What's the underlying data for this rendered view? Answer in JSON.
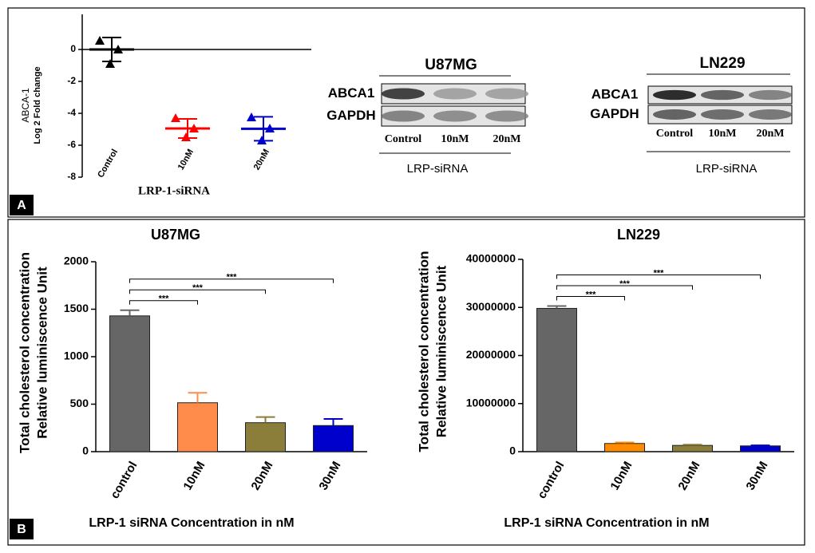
{
  "panels": [
    "A",
    "B"
  ],
  "blots": [
    {
      "title": "U87MG",
      "rows": [
        "ABCA1",
        "GAPDH"
      ],
      "lanes": [
        "Control",
        "10nM",
        "20nM"
      ],
      "group": "LRP-siRNA"
    },
    {
      "title": "LN229",
      "rows": [
        "ABCA1",
        "GAPDH"
      ],
      "lanes": [
        "Control",
        "10nM",
        "20nM"
      ],
      "group": "LRP-siRNA"
    }
  ],
  "chart_data": [
    {
      "type": "dot",
      "ylabel": [
        "ABCA-1",
        "Log 2 Fold change"
      ],
      "xlabel": "LRP-1-siRNA",
      "categories": [
        "Control",
        "10nM",
        "20nM"
      ],
      "points": [
        [
          0.55,
          0,
          -0.9
        ],
        [
          -4.3,
          -4.95,
          -5.5
        ],
        [
          -4.25,
          -4.95,
          -5.7
        ]
      ],
      "means": [
        0,
        -4.95,
        -4.97
      ],
      "errors": [
        0.75,
        0.6,
        0.75
      ],
      "colors": [
        "#000000",
        "#ff0000",
        "#0000cc"
      ],
      "ylim": [
        -8,
        2
      ],
      "yticks": [
        0,
        -2,
        -4,
        -6,
        -8
      ]
    },
    {
      "type": "bar",
      "title": "U87MG",
      "ylabel": [
        "Total cholesterol concentration",
        "Relative luminiscence Unit"
      ],
      "xlabel": "LRP-1 siRNA Concentration in nM",
      "categories": [
        "control",
        "10nM",
        "20nM",
        "30nM"
      ],
      "values": [
        1430,
        515,
        305,
        275
      ],
      "errors": [
        60,
        105,
        60,
        70
      ],
      "colors": [
        "#666666",
        "#ff8c4a",
        "#8b7d3a",
        "#0000cc"
      ],
      "significance": [
        "***",
        "***",
        "***"
      ],
      "ylim": [
        0,
        2000
      ],
      "yticks": [
        0,
        500,
        1000,
        1500,
        2000
      ]
    },
    {
      "type": "bar",
      "title": "LN229",
      "ylabel": [
        "Total cholesterol concentration",
        "Relative luminiscence Unit"
      ],
      "xlabel": "LRP-1 siRNA Concentration in nM",
      "categories": [
        "control",
        "10nM",
        "20nM",
        "30nM"
      ],
      "values": [
        29800000,
        1700000,
        1300000,
        1200000
      ],
      "errors": [
        500000,
        200000,
        150000,
        100000
      ],
      "colors": [
        "#666666",
        "#ff8c00",
        "#8b7d3a",
        "#0000cc"
      ],
      "significance": [
        "***",
        "***",
        "***"
      ],
      "ylim": [
        0,
        40000000
      ],
      "yticks": [
        0,
        10000000,
        20000000,
        30000000,
        40000000
      ]
    }
  ]
}
